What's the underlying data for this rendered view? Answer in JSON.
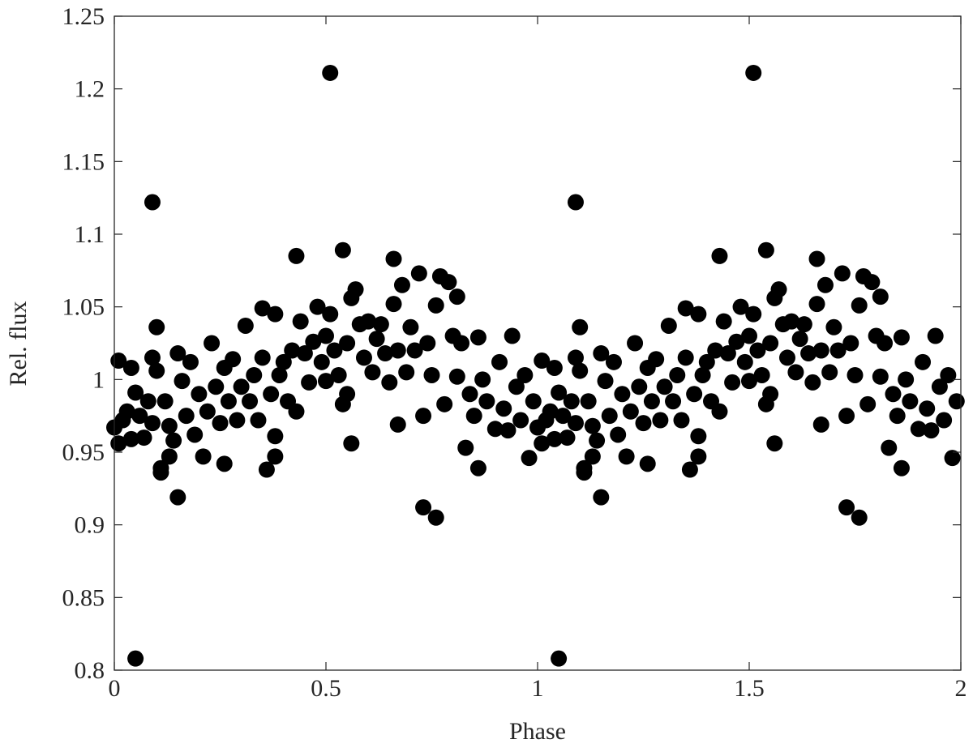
{
  "chart_data": {
    "type": "scatter",
    "xlabel": "Phase",
    "ylabel": "Rel. flux",
    "color": "#000000",
    "xlim": [
      0,
      2
    ],
    "ylim": [
      0.8,
      1.25
    ],
    "xticks": [
      0,
      0.5,
      1,
      1.5,
      2
    ],
    "yticks": [
      0.8,
      0.85,
      0.9,
      0.95,
      1,
      1.05,
      1.1,
      1.15,
      1.2,
      1.25
    ],
    "x": [
      0,
      0.01,
      0.01,
      0.02,
      0.03,
      0.04,
      0.04,
      0.05,
      0.05,
      0.06,
      0.07,
      0.08,
      0.09,
      0.09,
      0.09,
      0.1,
      0.1,
      0.11,
      0.11,
      0.12,
      0.13,
      0.13,
      0.14,
      0.15,
      0.15,
      0.16,
      0.17,
      0.18,
      0.19,
      0.2,
      0.21,
      0.22,
      0.23,
      0.24,
      0.25,
      0.26,
      0.26,
      0.27,
      0.28,
      0.29,
      0.3,
      0.31,
      0.32,
      0.33,
      0.34,
      0.35,
      0.35,
      0.36,
      0.37,
      0.38,
      0.38,
      0.38,
      0.39,
      0.4,
      0.41,
      0.42,
      0.43,
      0.43,
      0.44,
      0.45,
      0.46,
      0.47,
      0.48,
      0.49,
      0.5,
      0.5,
      0.51,
      0.51,
      0.52,
      0.53,
      0.54,
      0.54,
      0.55,
      0.55,
      0.56,
      0.56,
      0.57,
      0.58,
      0.59,
      0.6,
      0.61,
      0.62,
      0.63,
      0.64,
      0.65,
      0.66,
      0.66,
      0.67,
      0.67,
      0.68,
      0.69,
      0.7,
      0.71,
      0.72,
      0.73,
      0.73,
      0.74,
      0.75,
      0.76,
      0.76,
      0.77,
      0.78,
      0.79,
      0.8,
      0.81,
      0.81,
      0.82,
      0.83,
      0.84,
      0.85,
      0.86,
      0.86,
      0.87,
      0.88,
      0.9,
      0.91,
      0.92,
      0.93,
      0.94,
      0.95,
      0.96,
      0.97,
      0.98,
      0.99,
      1,
      1.01,
      1.01,
      1.02,
      1.03,
      1.04,
      1.04,
      1.05,
      1.05,
      1.06,
      1.07,
      1.08,
      1.09,
      1.09,
      1.09,
      1.1,
      1.1,
      1.11,
      1.11,
      1.12,
      1.13,
      1.13,
      1.14,
      1.15,
      1.15,
      1.16,
      1.17,
      1.18,
      1.19,
      1.2,
      1.21,
      1.22,
      1.23,
      1.24,
      1.25,
      1.26,
      1.26,
      1.27,
      1.28,
      1.29,
      1.3,
      1.31,
      1.32,
      1.33,
      1.34,
      1.35,
      1.35,
      1.36,
      1.37,
      1.38,
      1.38,
      1.38,
      1.39,
      1.4,
      1.41,
      1.42,
      1.43,
      1.43,
      1.44,
      1.45,
      1.46,
      1.47,
      1.48,
      1.49,
      1.5,
      1.5,
      1.51,
      1.51,
      1.52,
      1.53,
      1.54,
      1.54,
      1.55,
      1.55,
      1.56,
      1.56,
      1.57,
      1.58,
      1.59,
      1.6,
      1.61,
      1.62,
      1.63,
      1.64,
      1.65,
      1.66,
      1.66,
      1.67,
      1.67,
      1.68,
      1.69,
      1.7,
      1.71,
      1.72,
      1.73,
      1.73,
      1.74,
      1.75,
      1.76,
      1.76,
      1.77,
      1.78,
      1.79,
      1.8,
      1.81,
      1.81,
      1.82,
      1.83,
      1.84,
      1.85,
      1.86,
      1.86,
      1.87,
      1.88,
      1.9,
      1.91,
      1.92,
      1.93,
      1.94,
      1.95,
      1.96,
      1.97,
      1.98,
      1.99
    ],
    "values": [
      0.967,
      0.956,
      1.013,
      0.972,
      0.978,
      1.008,
      0.959,
      0.808,
      0.991,
      0.975,
      0.96,
      0.985,
      1.122,
      1.015,
      0.97,
      1.036,
      1.006,
      0.939,
      0.936,
      0.985,
      0.968,
      0.947,
      0.958,
      0.919,
      1.018,
      0.999,
      0.975,
      1.012,
      0.962,
      0.99,
      0.947,
      0.978,
      1.025,
      0.995,
      0.97,
      0.942,
      1.008,
      0.985,
      1.014,
      0.972,
      0.995,
      1.037,
      0.985,
      1.003,
      0.972,
      1.049,
      1.015,
      0.938,
      0.99,
      1.045,
      0.961,
      0.947,
      1.003,
      1.012,
      0.985,
      1.02,
      1.085,
      0.978,
      1.04,
      1.018,
      0.998,
      1.026,
      1.05,
      1.012,
      1.03,
      0.999,
      1.211,
      1.045,
      1.02,
      1.003,
      1.089,
      0.983,
      1.025,
      0.99,
      1.056,
      0.956,
      1.062,
      1.038,
      1.015,
      1.04,
      1.005,
      1.028,
      1.038,
      1.018,
      0.998,
      1.083,
      1.052,
      1.02,
      0.969,
      1.065,
      1.005,
      1.036,
      1.02,
      1.073,
      0.912,
      0.975,
      1.025,
      1.003,
      0.905,
      1.051,
      1.071,
      0.983,
      1.067,
      1.03,
      1.057,
      1.002,
      1.025,
      0.953,
      0.99,
      0.975,
      1.029,
      0.939,
      1,
      0.985,
      0.966,
      1.012,
      0.98,
      0.965,
      1.03,
      0.995,
      0.972,
      1.003,
      0.946,
      0.985,
      0.967,
      0.956,
      1.013,
      0.972,
      0.978,
      1.008,
      0.959,
      0.808,
      0.991,
      0.975,
      0.96,
      0.985,
      1.122,
      1.015,
      0.97,
      1.036,
      1.006,
      0.939,
      0.936,
      0.985,
      0.968,
      0.947,
      0.958,
      0.919,
      1.018,
      0.999,
      0.975,
      1.012,
      0.962,
      0.99,
      0.947,
      0.978,
      1.025,
      0.995,
      0.97,
      0.942,
      1.008,
      0.985,
      1.014,
      0.972,
      0.995,
      1.037,
      0.985,
      1.003,
      0.972,
      1.049,
      1.015,
      0.938,
      0.99,
      1.045,
      0.961,
      0.947,
      1.003,
      1.012,
      0.985,
      1.02,
      1.085,
      0.978,
      1.04,
      1.018,
      0.998,
      1.026,
      1.05,
      1.012,
      1.03,
      0.999,
      1.211,
      1.045,
      1.02,
      1.003,
      1.089,
      0.983,
      1.025,
      0.99,
      1.056,
      0.956,
      1.062,
      1.038,
      1.015,
      1.04,
      1.005,
      1.028,
      1.038,
      1.018,
      0.998,
      1.083,
      1.052,
      1.02,
      0.969,
      1.065,
      1.005,
      1.036,
      1.02,
      1.073,
      0.912,
      0.975,
      1.025,
      1.003,
      0.905,
      1.051,
      1.071,
      0.983,
      1.067,
      1.03,
      1.057,
      1.002,
      1.025,
      0.953,
      0.99,
      0.975,
      1.029,
      0.939,
      1,
      0.985,
      0.966,
      1.012,
      0.98,
      0.965,
      1.03,
      0.995,
      0.972,
      1.003,
      0.946,
      0.985
    ]
  }
}
